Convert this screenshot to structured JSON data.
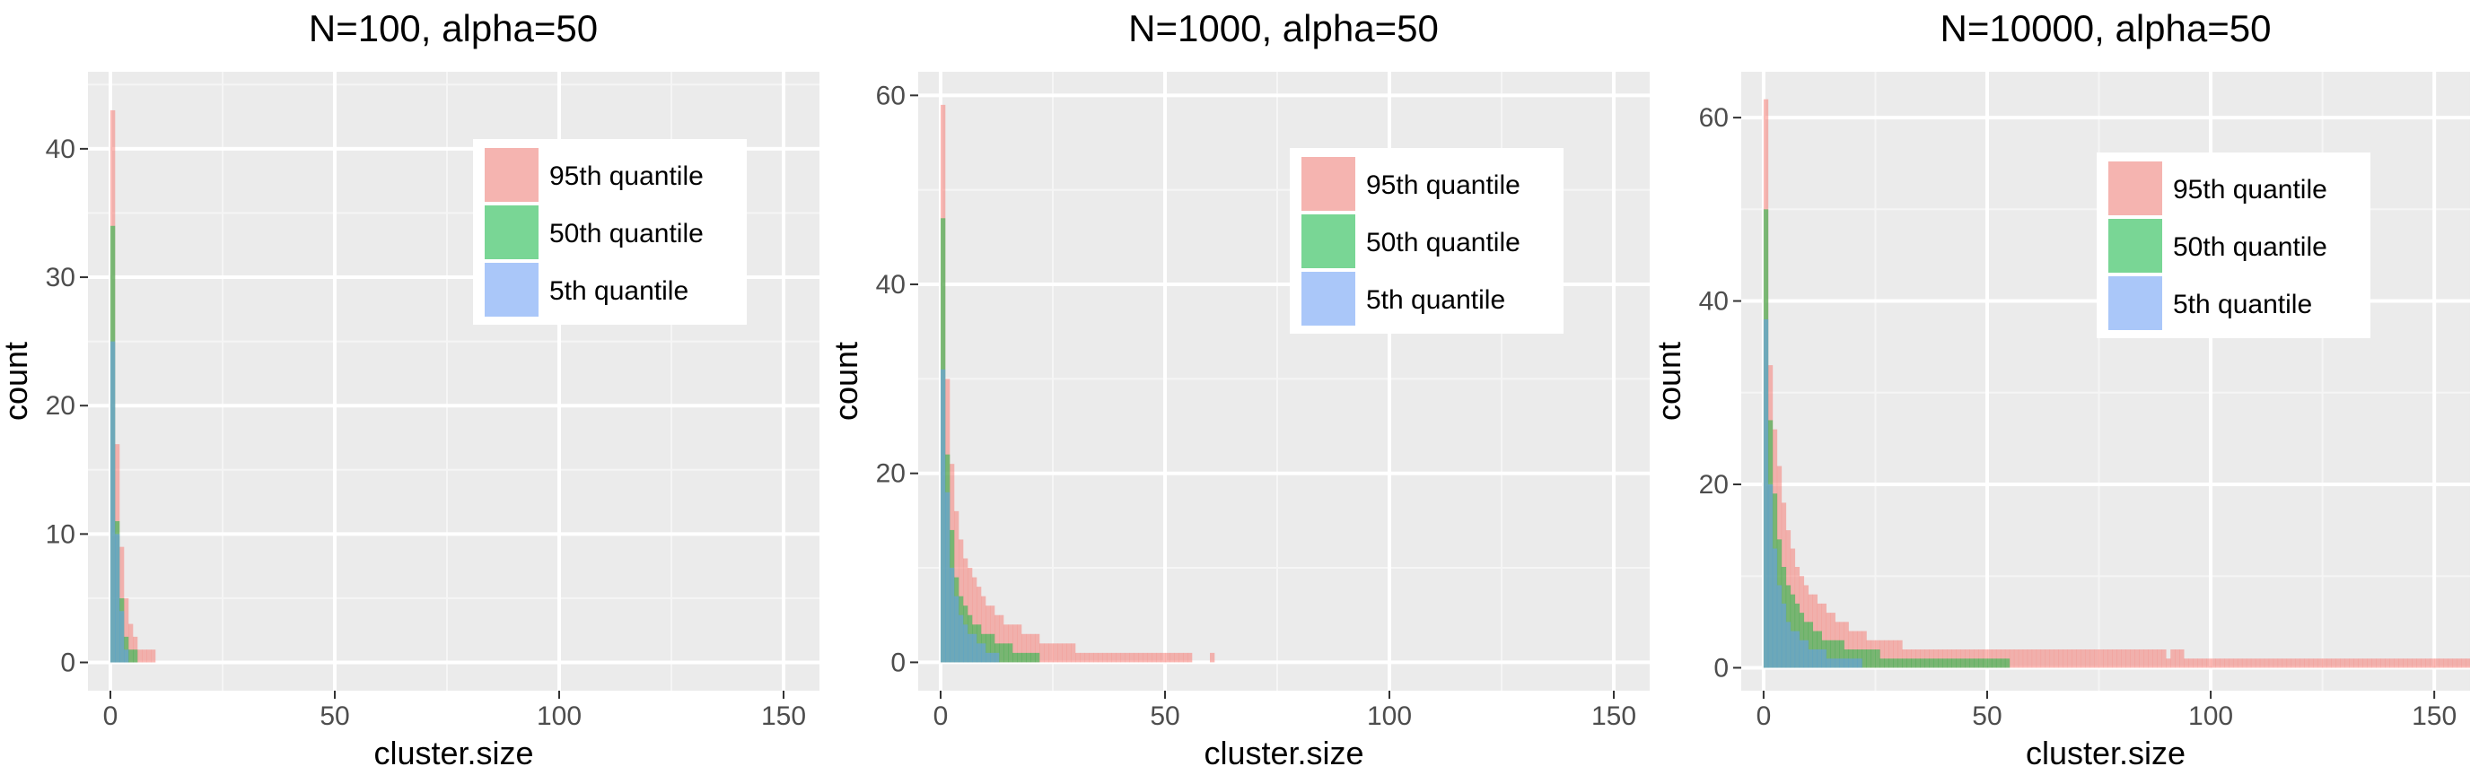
{
  "colors": {
    "panel_background": "#EBEBEB",
    "grid_major": "#FFFFFF",
    "grid_minor": "#F5F5F5",
    "q95": "#F8766D",
    "q50": "#00BA38",
    "q5": "#619CFF",
    "fill_alpha": 0.5,
    "axis_text": "#4D4D4D",
    "title_text": "#000000"
  },
  "legend_labels": [
    "95th quantile",
    "50th quantile",
    "5th quantile"
  ],
  "chart_data": [
    {
      "type": "bar",
      "title": "N=100, alpha=50",
      "xlabel": "cluster.size",
      "ylabel": "count",
      "xlim": [
        -5,
        158
      ],
      "ylim": [
        -2.2,
        46
      ],
      "xticks": [
        0,
        50,
        100,
        150
      ],
      "yticks": [
        0,
        10,
        20,
        30,
        40
      ],
      "grid": true,
      "legend_position": "top-center",
      "series": [
        {
          "name": "95th quantile",
          "x": [
            1,
            2,
            3,
            4,
            5,
            6,
            7,
            8,
            9,
            10
          ],
          "values": [
            43,
            17,
            9,
            5,
            3,
            2,
            1,
            1,
            1,
            1
          ]
        },
        {
          "name": "50th quantile",
          "x": [
            1,
            2,
            3,
            4,
            5,
            6
          ],
          "values": [
            34,
            11,
            5,
            2,
            1,
            1
          ]
        },
        {
          "name": "5th quantile",
          "x": [
            1,
            2,
            3,
            4
          ],
          "values": [
            25,
            10,
            4,
            1
          ]
        }
      ]
    },
    {
      "type": "bar",
      "title": "N=1000, alpha=50",
      "xlabel": "cluster.size",
      "ylabel": "count",
      "xlim": [
        -5,
        158
      ],
      "ylim": [
        -3,
        62.5
      ],
      "xticks": [
        0,
        50,
        100,
        150
      ],
      "yticks": [
        0,
        20,
        40,
        60
      ],
      "grid": true,
      "legend_position": "top-right",
      "series": [
        {
          "name": "95th quantile",
          "x": [
            1,
            2,
            3,
            4,
            5,
            6,
            7,
            8,
            9,
            10,
            11,
            12,
            13,
            14,
            15,
            16,
            17,
            18,
            19,
            20,
            21,
            22,
            23,
            24,
            25,
            26,
            27,
            28,
            29,
            30,
            31,
            32,
            33,
            34,
            35,
            36,
            37,
            38,
            39,
            40,
            41,
            42,
            43,
            44,
            45,
            46,
            47,
            48,
            49,
            50,
            51,
            52,
            53,
            54,
            55,
            56,
            61
          ],
          "values": [
            59,
            30,
            21,
            16,
            13,
            11,
            10,
            9,
            8,
            7,
            6,
            6,
            5,
            5,
            4,
            4,
            4,
            4,
            3,
            3,
            3,
            3,
            2,
            2,
            2,
            2,
            2,
            2,
            2,
            2,
            1,
            1,
            1,
            1,
            1,
            1,
            1,
            1,
            1,
            1,
            1,
            1,
            1,
            1,
            1,
            1,
            1,
            1,
            1,
            1,
            1,
            1,
            1,
            1,
            1,
            1,
            1
          ]
        },
        {
          "name": "50th quantile",
          "x": [
            1,
            2,
            3,
            4,
            5,
            6,
            7,
            8,
            9,
            10,
            11,
            12,
            13,
            14,
            15,
            16,
            17,
            18,
            19,
            20,
            21,
            22
          ],
          "values": [
            47,
            22,
            14,
            9,
            7,
            6,
            5,
            4,
            4,
            3,
            3,
            3,
            2,
            2,
            2,
            2,
            1,
            1,
            1,
            1,
            1,
            1
          ]
        },
        {
          "name": "5th quantile",
          "x": [
            1,
            2,
            3,
            4,
            5,
            6,
            7,
            8,
            9,
            10,
            11,
            12,
            13
          ],
          "values": [
            31,
            18,
            10,
            7,
            5,
            4,
            3,
            3,
            2,
            2,
            1,
            1,
            1
          ]
        }
      ]
    },
    {
      "type": "bar",
      "title": "N=10000, alpha=50",
      "xlabel": "cluster.size",
      "ylabel": "count",
      "xlim": [
        -5,
        158
      ],
      "ylim": [
        -2.5,
        65
      ],
      "xticks": [
        0,
        50,
        100,
        150
      ],
      "yticks": [
        0,
        20,
        40,
        60
      ],
      "grid": true,
      "legend_position": "top-right",
      "series": [
        {
          "name": "95th quantile",
          "x": [
            1,
            2,
            3,
            4,
            5,
            6,
            7,
            8,
            9,
            10,
            11,
            12,
            13,
            14,
            15,
            16,
            17,
            18,
            19,
            20,
            21,
            22,
            23,
            24,
            25,
            26,
            27,
            28,
            29,
            30,
            31,
            32,
            33,
            34,
            35,
            36,
            37,
            38,
            39,
            40,
            41,
            42,
            43,
            44,
            45,
            46,
            47,
            48,
            49,
            50,
            51,
            52,
            53,
            54,
            55,
            56,
            57,
            58,
            59,
            60,
            61,
            62,
            63,
            64,
            65,
            66,
            67,
            68,
            69,
            70,
            71,
            72,
            73,
            74,
            75,
            76,
            77,
            78,
            79,
            80,
            81,
            82,
            83,
            84,
            85,
            86,
            87,
            88,
            89,
            90,
            91,
            92,
            93,
            94,
            95,
            96,
            97,
            98,
            99,
            100,
            101,
            102,
            103,
            104,
            105,
            106,
            107,
            108,
            109,
            110,
            111,
            112,
            113,
            114,
            115,
            116,
            117,
            118,
            119,
            120,
            121,
            122,
            123,
            124,
            125,
            126,
            127,
            128,
            129,
            130,
            131,
            132,
            133,
            134,
            135,
            136,
            137,
            138,
            139,
            140,
            141,
            142,
            143,
            144,
            145,
            146,
            147,
            148,
            149,
            150,
            151,
            152,
            153,
            154,
            155,
            156,
            157,
            158
          ],
          "values": [
            62,
            33,
            26,
            22,
            18,
            15,
            13,
            11,
            10,
            9,
            8,
            8,
            7,
            7,
            6,
            6,
            5,
            5,
            5,
            4,
            4,
            4,
            4,
            3,
            3,
            3,
            3,
            3,
            3,
            3,
            3,
            2,
            2,
            2,
            2,
            2,
            2,
            2,
            2,
            2,
            2,
            2,
            2,
            2,
            2,
            2,
            2,
            2,
            2,
            2,
            2,
            2,
            2,
            2,
            2,
            2,
            2,
            2,
            2,
            2,
            2,
            2,
            2,
            2,
            2,
            2,
            2,
            2,
            2,
            2,
            2,
            2,
            2,
            2,
            2,
            2,
            2,
            2,
            2,
            2,
            2,
            2,
            2,
            2,
            2,
            2,
            2,
            2,
            2,
            2,
            1,
            2,
            2,
            2,
            1,
            1,
            1,
            1,
            1,
            1,
            1,
            1,
            1,
            1,
            1,
            1,
            1,
            1,
            1,
            1,
            1,
            1,
            1,
            1,
            1,
            1,
            1,
            1,
            1,
            1,
            1,
            1,
            1,
            1,
            1,
            1,
            1,
            1,
            1,
            1,
            1,
            1,
            1,
            1,
            1,
            1,
            1,
            1,
            1,
            1,
            1,
            1,
            1,
            1,
            1,
            1,
            1,
            1,
            1,
            1,
            1,
            1,
            1,
            1,
            1,
            1,
            1,
            1
          ]
        },
        {
          "name": "50th quantile",
          "x": [
            1,
            2,
            3,
            4,
            5,
            6,
            7,
            8,
            9,
            10,
            11,
            12,
            13,
            14,
            15,
            16,
            17,
            18,
            19,
            20,
            21,
            22,
            23,
            24,
            25,
            26,
            27,
            28,
            29,
            30,
            31,
            32,
            33,
            34,
            35,
            36,
            37,
            38,
            39,
            40,
            41,
            42,
            43,
            44,
            45,
            46,
            47,
            48,
            49,
            50,
            51,
            52,
            53,
            54,
            55
          ],
          "values": [
            50,
            27,
            19,
            14,
            11,
            9,
            8,
            7,
            6,
            5,
            5,
            4,
            4,
            3,
            3,
            3,
            3,
            3,
            2,
            2,
            2,
            2,
            2,
            2,
            2,
            2,
            1,
            1,
            1,
            1,
            1,
            1,
            1,
            1,
            1,
            1,
            1,
            1,
            1,
            1,
            1,
            1,
            1,
            1,
            1,
            1,
            1,
            1,
            1,
            1,
            1,
            1,
            1,
            1,
            1
          ]
        },
        {
          "name": "5th quantile",
          "x": [
            1,
            2,
            3,
            4,
            5,
            6,
            7,
            8,
            9,
            10,
            11,
            12,
            13,
            14,
            15,
            16,
            17,
            18,
            19,
            20,
            21,
            22
          ],
          "values": [
            38,
            20,
            13,
            9,
            7,
            5,
            4,
            4,
            3,
            3,
            2,
            2,
            2,
            2,
            1,
            1,
            1,
            1,
            1,
            1,
            1,
            1
          ]
        }
      ]
    }
  ]
}
